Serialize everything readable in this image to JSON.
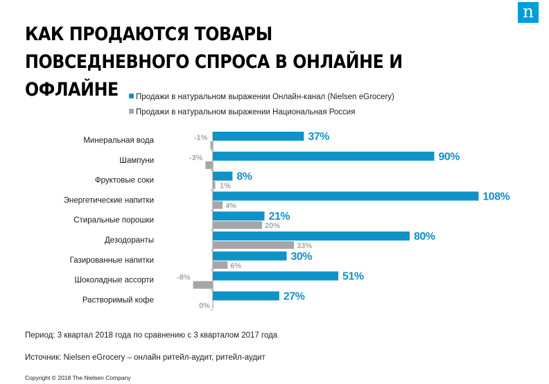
{
  "logo": "n",
  "title": "Как продаются товары повседневного спроса в онлайне и офлайне",
  "colors": {
    "online": "#0e93c9",
    "national": "#a6a6a6",
    "brand": "#009ddb"
  },
  "chart_data": {
    "type": "bar",
    "orientation": "horizontal",
    "categories": [
      "Минеральная вода",
      "Шампуни",
      "Фруктовые соки",
      "Энергетические напитки",
      "Стиральные порошки",
      "Дезодоранты",
      "Газированные напитки",
      "Шоколадные ассорти",
      "Растворимый кофе"
    ],
    "series": [
      {
        "name": "Продажи в натуральном выражении Онлайн-канал (Nielsen eGrocery)",
        "values": [
          37,
          90,
          8,
          108,
          21,
          80,
          30,
          51,
          27
        ],
        "labels": [
          "37%",
          "90%",
          "8%",
          "108%",
          "21%",
          "80%",
          "30%",
          "51%",
          "27%"
        ]
      },
      {
        "name": "Продажи в натуральном выражении Национальная Россия",
        "values": [
          -1,
          -3,
          1,
          4,
          20,
          33,
          6,
          -8,
          0
        ],
        "labels": [
          "-1%",
          "-3%",
          "1%",
          "4%",
          "20%",
          "33%",
          "6%",
          "-8%",
          "0%"
        ]
      }
    ],
    "legend_position": "top",
    "grid": false
  },
  "notes": {
    "period": "Период: 3 квартал 2018 года по сравнению с 3 кварталом 2017 года",
    "source": "Источник: Nielsen eGrocery – онлайн ритейл-аудит, ритейл-аудит"
  },
  "copyright": "Copyright © 2018 The Nielsen Company"
}
